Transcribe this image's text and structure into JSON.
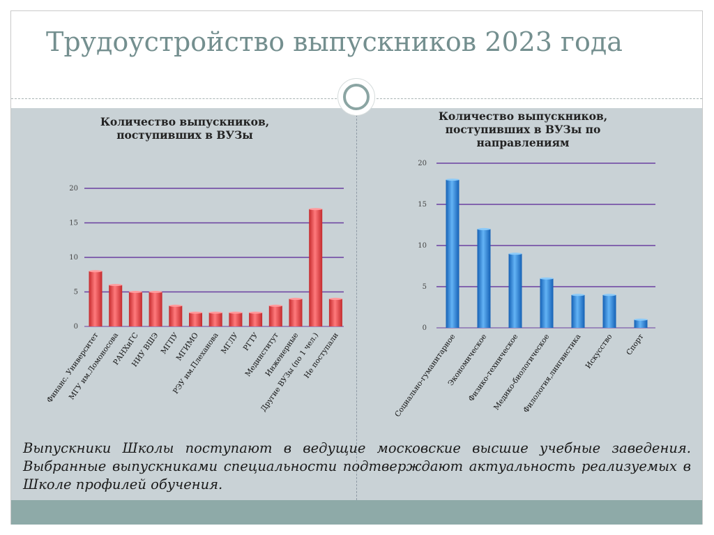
{
  "slide": {
    "title": "Трудоустройство выпускников 2023 года",
    "footer": "Выпускники Школы поступают в ведущие московские высшие учебные заведения. Выбранные выпускниками специальности подтверждают актуальность реализуемых в Школе профилей обучения."
  },
  "colors": {
    "chart1_bar": "#e8474a",
    "chart2_bar": "#2b86d6",
    "gridline": "#6a3fa0",
    "title": "#748f8f"
  },
  "chart_data": [
    {
      "type": "bar",
      "title": "Количество выпускников,\nпоступивших в ВУЗы",
      "categories": [
        "Финанс. Университет",
        "МГУ им.Ломоносова",
        "РАНХиГС",
        "НИУ ВШЭ",
        "МГПУ",
        "МГИМО",
        "РЭУ им.Плеханова",
        "МГЛУ",
        "РГТУ",
        "Мединститут",
        "Инженерные",
        "Другие ВУЗы (по 1 чел.)",
        "Не поступали"
      ],
      "values": [
        8,
        6,
        5,
        5,
        3,
        2,
        2,
        2,
        2,
        3,
        4,
        17,
        4
      ],
      "ylim": [
        0,
        20
      ],
      "yticks": [
        0,
        5,
        10,
        15,
        20
      ],
      "grid": true
    },
    {
      "type": "bar",
      "title": "Количество выпускников,\nпоступивших в ВУЗы по\nнаправлениям",
      "categories": [
        "Социально-гуманитарное",
        "Экономическое",
        "Физико-техническое",
        "Медико-биологическое",
        "Филология,лингвистика",
        "Искусство",
        "Спорт"
      ],
      "values": [
        18,
        12,
        9,
        6,
        4,
        4,
        1
      ],
      "ylim": [
        0,
        20
      ],
      "yticks": [
        0,
        5,
        10,
        15,
        20
      ],
      "grid": true
    }
  ]
}
